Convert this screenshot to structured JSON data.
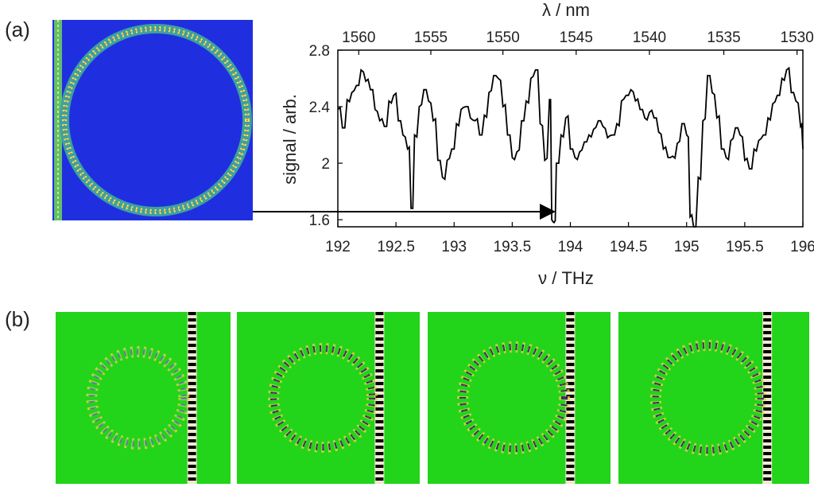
{
  "panel_labels": {
    "a": "(a)",
    "b": "(b)"
  },
  "colors": {
    "field_background_a": "#1f2fe0",
    "field_background_b": "#22d41a",
    "trace": "#000000",
    "arrow": "#000000"
  },
  "chart_data": {
    "type": "line",
    "xlabel": "ν / THz",
    "ylabel": "signal / arb.",
    "top_xlabel": "λ / nm",
    "xlim": [
      192,
      196
    ],
    "ylim": [
      1.55,
      2.8
    ],
    "x_ticks": [
      "192",
      "192.5",
      "193",
      "193.5",
      "194",
      "194.5",
      "195",
      "195.5",
      "196"
    ],
    "x_tick_values": [
      192,
      192.5,
      193,
      193.5,
      194,
      194.5,
      195,
      195.5,
      196
    ],
    "y_ticks": [
      "1.6",
      "2",
      "2.4",
      "2.8"
    ],
    "y_tick_values": [
      1.6,
      2.0,
      2.4,
      2.8
    ],
    "top_ticks": [
      "1560",
      "1555",
      "1550",
      "1545",
      "1540",
      "1535",
      "1530"
    ],
    "top_tick_frequencies": [
      192.18,
      192.8,
      193.42,
      194.05,
      194.68,
      195.32,
      195.95
    ],
    "grid": false,
    "series": [
      {
        "x": [
          192.0,
          192.04,
          192.08,
          192.12,
          192.16,
          192.2,
          192.24,
          192.28,
          192.32,
          192.36,
          192.4,
          192.44,
          192.48,
          192.52,
          192.56,
          192.6,
          192.63,
          192.66,
          192.7,
          192.74,
          192.78,
          192.82,
          192.86,
          192.9,
          192.94,
          192.98,
          193.02,
          193.06,
          193.1,
          193.14,
          193.18,
          193.22,
          193.26,
          193.3,
          193.34,
          193.38,
          193.42,
          193.46,
          193.5,
          193.54,
          193.58,
          193.62,
          193.66,
          193.7,
          193.74,
          193.78,
          193.82,
          193.84,
          193.86,
          193.88,
          193.92,
          193.96,
          194.0,
          194.04,
          194.08,
          194.12,
          194.16,
          194.2,
          194.24,
          194.28,
          194.32,
          194.36,
          194.4,
          194.44,
          194.48,
          194.52,
          194.56,
          194.6,
          194.64,
          194.68,
          194.72,
          194.76,
          194.8,
          194.84,
          194.88,
          194.92,
          194.96,
          195.0,
          195.03,
          195.06,
          195.1,
          195.14,
          195.18,
          195.22,
          195.26,
          195.3,
          195.34,
          195.38,
          195.42,
          195.46,
          195.5,
          195.54,
          195.58,
          195.62,
          195.66,
          195.7,
          195.74,
          195.78,
          195.82,
          195.86,
          195.9,
          195.94,
          195.98,
          196.0
        ],
        "y": [
          2.38,
          2.25,
          2.45,
          2.5,
          2.55,
          2.66,
          2.58,
          2.52,
          2.38,
          2.3,
          2.26,
          2.44,
          2.48,
          2.3,
          2.2,
          2.1,
          1.68,
          2.2,
          2.4,
          2.52,
          2.44,
          2.3,
          2.02,
          1.9,
          2.02,
          2.1,
          2.28,
          2.38,
          2.4,
          2.32,
          2.3,
          2.2,
          2.34,
          2.5,
          2.62,
          2.6,
          2.4,
          2.2,
          2.04,
          2.08,
          2.3,
          2.44,
          2.6,
          2.66,
          2.28,
          2.02,
          2.45,
          1.6,
          1.58,
          2.0,
          2.2,
          2.32,
          2.1,
          2.04,
          2.08,
          2.15,
          2.2,
          2.24,
          2.3,
          2.26,
          2.18,
          2.2,
          2.28,
          2.44,
          2.48,
          2.52,
          2.44,
          2.38,
          2.32,
          2.36,
          2.32,
          2.22,
          2.1,
          2.04,
          2.05,
          2.14,
          2.28,
          2.2,
          1.62,
          1.55,
          1.9,
          2.3,
          2.62,
          2.5,
          2.32,
          2.1,
          2.04,
          2.16,
          2.25,
          2.2,
          2.02,
          1.96,
          2.1,
          2.16,
          2.2,
          2.32,
          2.42,
          2.48,
          2.6,
          2.66,
          2.5,
          2.44,
          2.26,
          2.1
        ]
      }
    ]
  }
}
